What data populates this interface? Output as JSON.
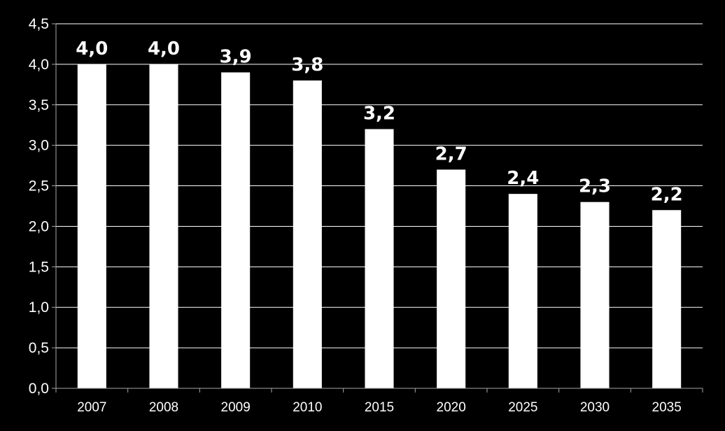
{
  "chart_data": {
    "type": "bar",
    "title": "",
    "xlabel": "",
    "ylabel": "",
    "categories": [
      "2007",
      "2008",
      "2009",
      "2010",
      "2015",
      "2020",
      "2025",
      "2030",
      "2035"
    ],
    "values": [
      4.0,
      4.0,
      3.9,
      3.8,
      3.2,
      2.7,
      2.4,
      2.3,
      2.2
    ],
    "value_labels": [
      "4,0",
      "4,0",
      "3,9",
      "3,8",
      "3,2",
      "2,7",
      "2,4",
      "2,3",
      "2,2"
    ],
    "ylim": [
      0,
      4.5
    ],
    "y_ticks": [
      0,
      0.5,
      1.0,
      1.5,
      2.0,
      2.5,
      3.0,
      3.5,
      4.0,
      4.5
    ],
    "y_tick_labels": [
      "0,0",
      "0,5",
      "1,0",
      "1,5",
      "2,0",
      "2,5",
      "3,0",
      "3,5",
      "4,0",
      "4,5"
    ],
    "grid": true,
    "legend": "none",
    "colors": {
      "background": "#000000",
      "bar": "#ffffff",
      "grid": "#ffffff",
      "axis": "#a6a6a6",
      "text": "#ffffff"
    }
  }
}
